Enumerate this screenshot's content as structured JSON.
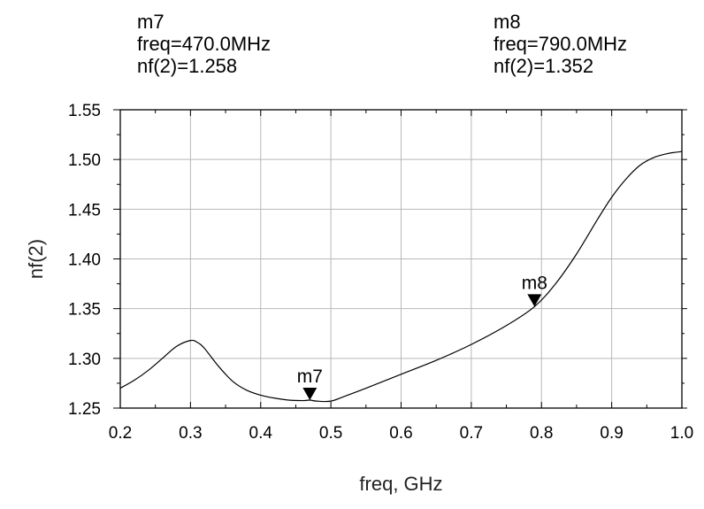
{
  "chart_data": {
    "type": "line",
    "title": "",
    "xlabel": "freq, GHz",
    "ylabel": "nf(2)",
    "xlim": [
      0.2,
      1.0
    ],
    "ylim": [
      1.25,
      1.55
    ],
    "grid": true,
    "x_ticks": [
      "0.2",
      "0.3",
      "0.4",
      "0.5",
      "0.6",
      "0.7",
      "0.8",
      "0.9",
      "1.0"
    ],
    "y_ticks": [
      "1.25",
      "1.30",
      "1.35",
      "1.40",
      "1.45",
      "1.50",
      "1.55"
    ],
    "series": [
      {
        "color": "#000000",
        "x": [
          0.2,
          0.22,
          0.24,
          0.26,
          0.28,
          0.3,
          0.31,
          0.32,
          0.34,
          0.36,
          0.38,
          0.4,
          0.42,
          0.44,
          0.46,
          0.47,
          0.48,
          0.5,
          0.52,
          0.55,
          0.6,
          0.65,
          0.7,
          0.75,
          0.79,
          0.82,
          0.85,
          0.88,
          0.9,
          0.92,
          0.94,
          0.96,
          0.98,
          1.0
        ],
        "y": [
          1.27,
          1.278,
          1.288,
          1.3,
          1.312,
          1.318,
          1.316,
          1.31,
          1.292,
          1.277,
          1.268,
          1.263,
          1.26,
          1.258,
          1.2575,
          1.258,
          1.257,
          1.257,
          1.262,
          1.27,
          1.284,
          1.298,
          1.314,
          1.333,
          1.352,
          1.375,
          1.405,
          1.44,
          1.462,
          1.48,
          1.494,
          1.502,
          1.506,
          1.508
        ]
      }
    ],
    "markers": [
      {
        "name": "m7",
        "freq": "470.0MHz",
        "value": "1.258",
        "x": 0.47,
        "y": 1.258
      },
      {
        "name": "m8",
        "freq": "790.0MHz",
        "value": "1.352",
        "x": 0.79,
        "y": 1.352
      }
    ]
  }
}
